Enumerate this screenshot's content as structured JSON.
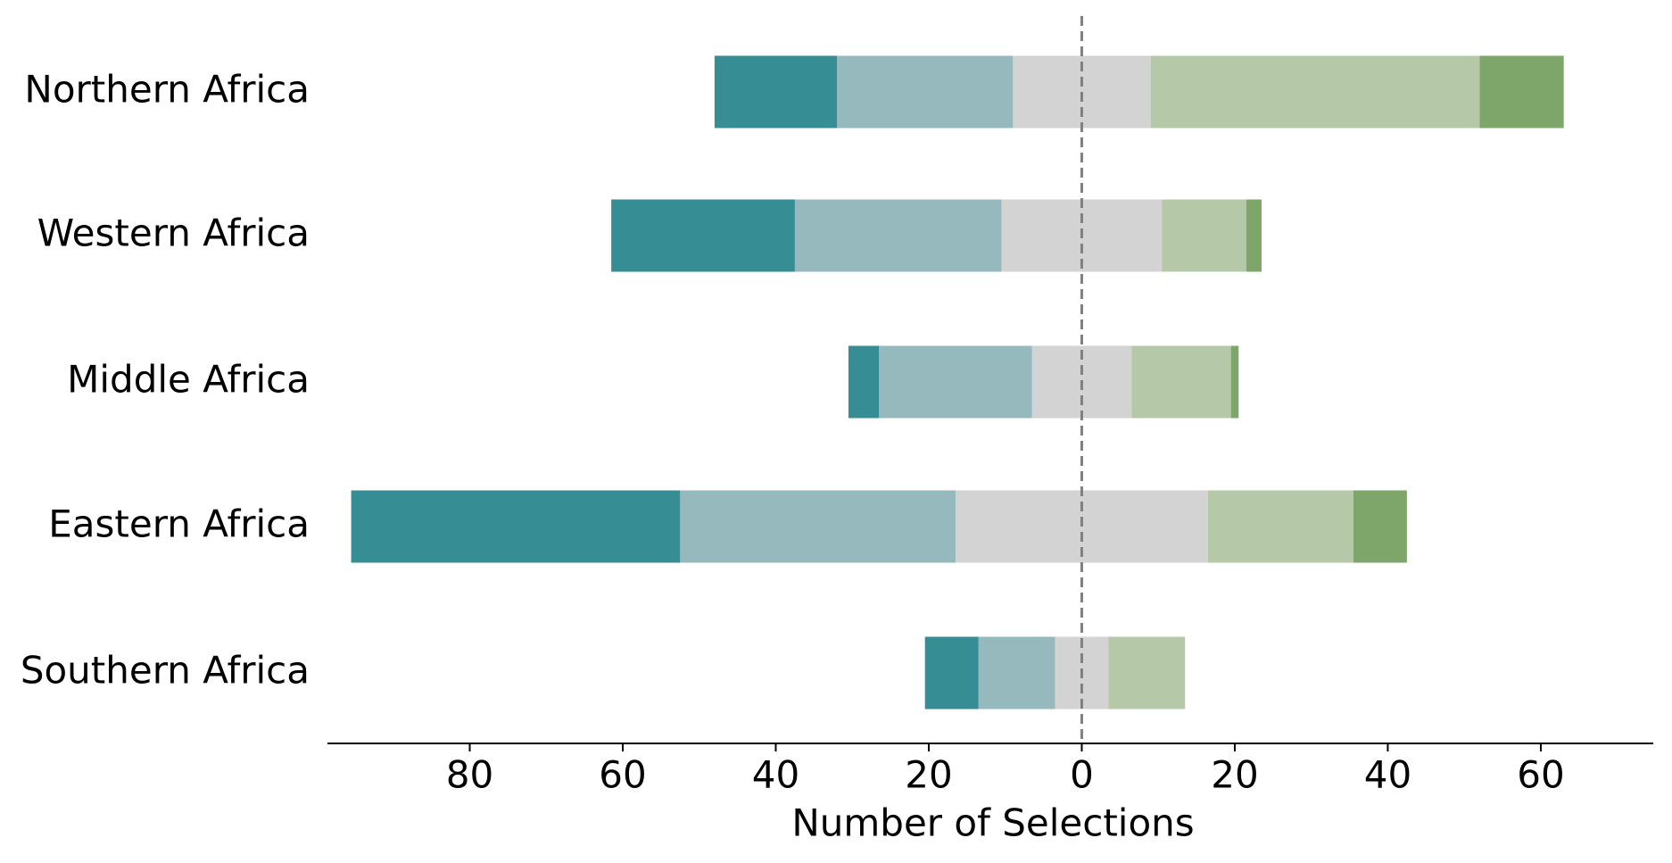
{
  "chart_data": {
    "type": "diverging-bar",
    "x_label": "Number of Selections",
    "categories": [
      "Northern Africa",
      "Western Africa",
      "Middle Africa",
      "Eastern Africa",
      "Southern Africa"
    ],
    "series": [
      {
        "color": "#378d94",
        "values": [
          16,
          24,
          4,
          43,
          7
        ]
      },
      {
        "color": "#96b9be",
        "values": [
          23,
          27,
          20,
          36,
          10
        ]
      },
      {
        "color": "#d3d3d3",
        "values": [
          18,
          21,
          13,
          33,
          7
        ]
      },
      {
        "color": "#b5c9a9",
        "values": [
          43,
          11,
          13,
          19,
          10
        ]
      },
      {
        "color": "#7ea66b",
        "values": [
          11,
          2,
          1,
          7,
          0
        ]
      }
    ],
    "xlim": [
      -98.6,
      74.7
    ],
    "xticks": [
      {
        "value": -80,
        "label": "80"
      },
      {
        "value": -60,
        "label": "60"
      },
      {
        "value": -40,
        "label": "40"
      },
      {
        "value": -20,
        "label": "20"
      },
      0,
      20,
      40,
      60
    ]
  }
}
